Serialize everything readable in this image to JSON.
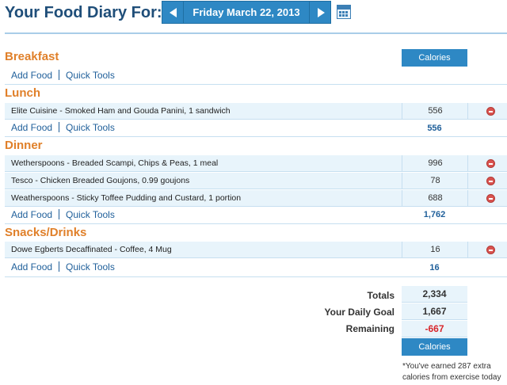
{
  "header": {
    "title": "Your Food Diary For:",
    "date": "Friday March 22, 2013"
  },
  "columns": {
    "calories_label": "Calories"
  },
  "links": {
    "add_food": "Add Food",
    "quick_tools": "Quick Tools"
  },
  "sections": {
    "breakfast": {
      "title": "Breakfast",
      "items": [],
      "total": ""
    },
    "lunch": {
      "title": "Lunch",
      "items": [
        {
          "name": "Elite Cuisine - Smoked Ham and Gouda Panini, 1 sandwich",
          "calories": "556"
        }
      ],
      "total": "556"
    },
    "dinner": {
      "title": "Dinner",
      "items": [
        {
          "name": "Wetherspoons - Breaded Scampi, Chips & Peas, 1 meal",
          "calories": "996"
        },
        {
          "name": "Tesco - Chicken Breaded Goujons, 0.99 goujons",
          "calories": "78"
        },
        {
          "name": "Weatherspoons - Sticky Toffee Pudding and Custard, 1 portion",
          "calories": "688"
        }
      ],
      "total": "1,762"
    },
    "snacks": {
      "title": "Snacks/Drinks",
      "items": [
        {
          "name": "Dowe Egberts Decaffinated - Coffee, 4 Mug",
          "calories": "16"
        }
      ],
      "total": "16"
    }
  },
  "summary": {
    "totals_label": "Totals",
    "totals": "2,334",
    "goal_label": "Your Daily Goal",
    "goal": "1,667",
    "remaining_label": "Remaining",
    "remaining": "-667",
    "footer_label": "Calories",
    "note": "*You've earned 287 extra calories from exercise today"
  },
  "colors": {
    "accent": "#2e88c4",
    "section_title": "#e0802a",
    "negative": "#d8262b"
  }
}
